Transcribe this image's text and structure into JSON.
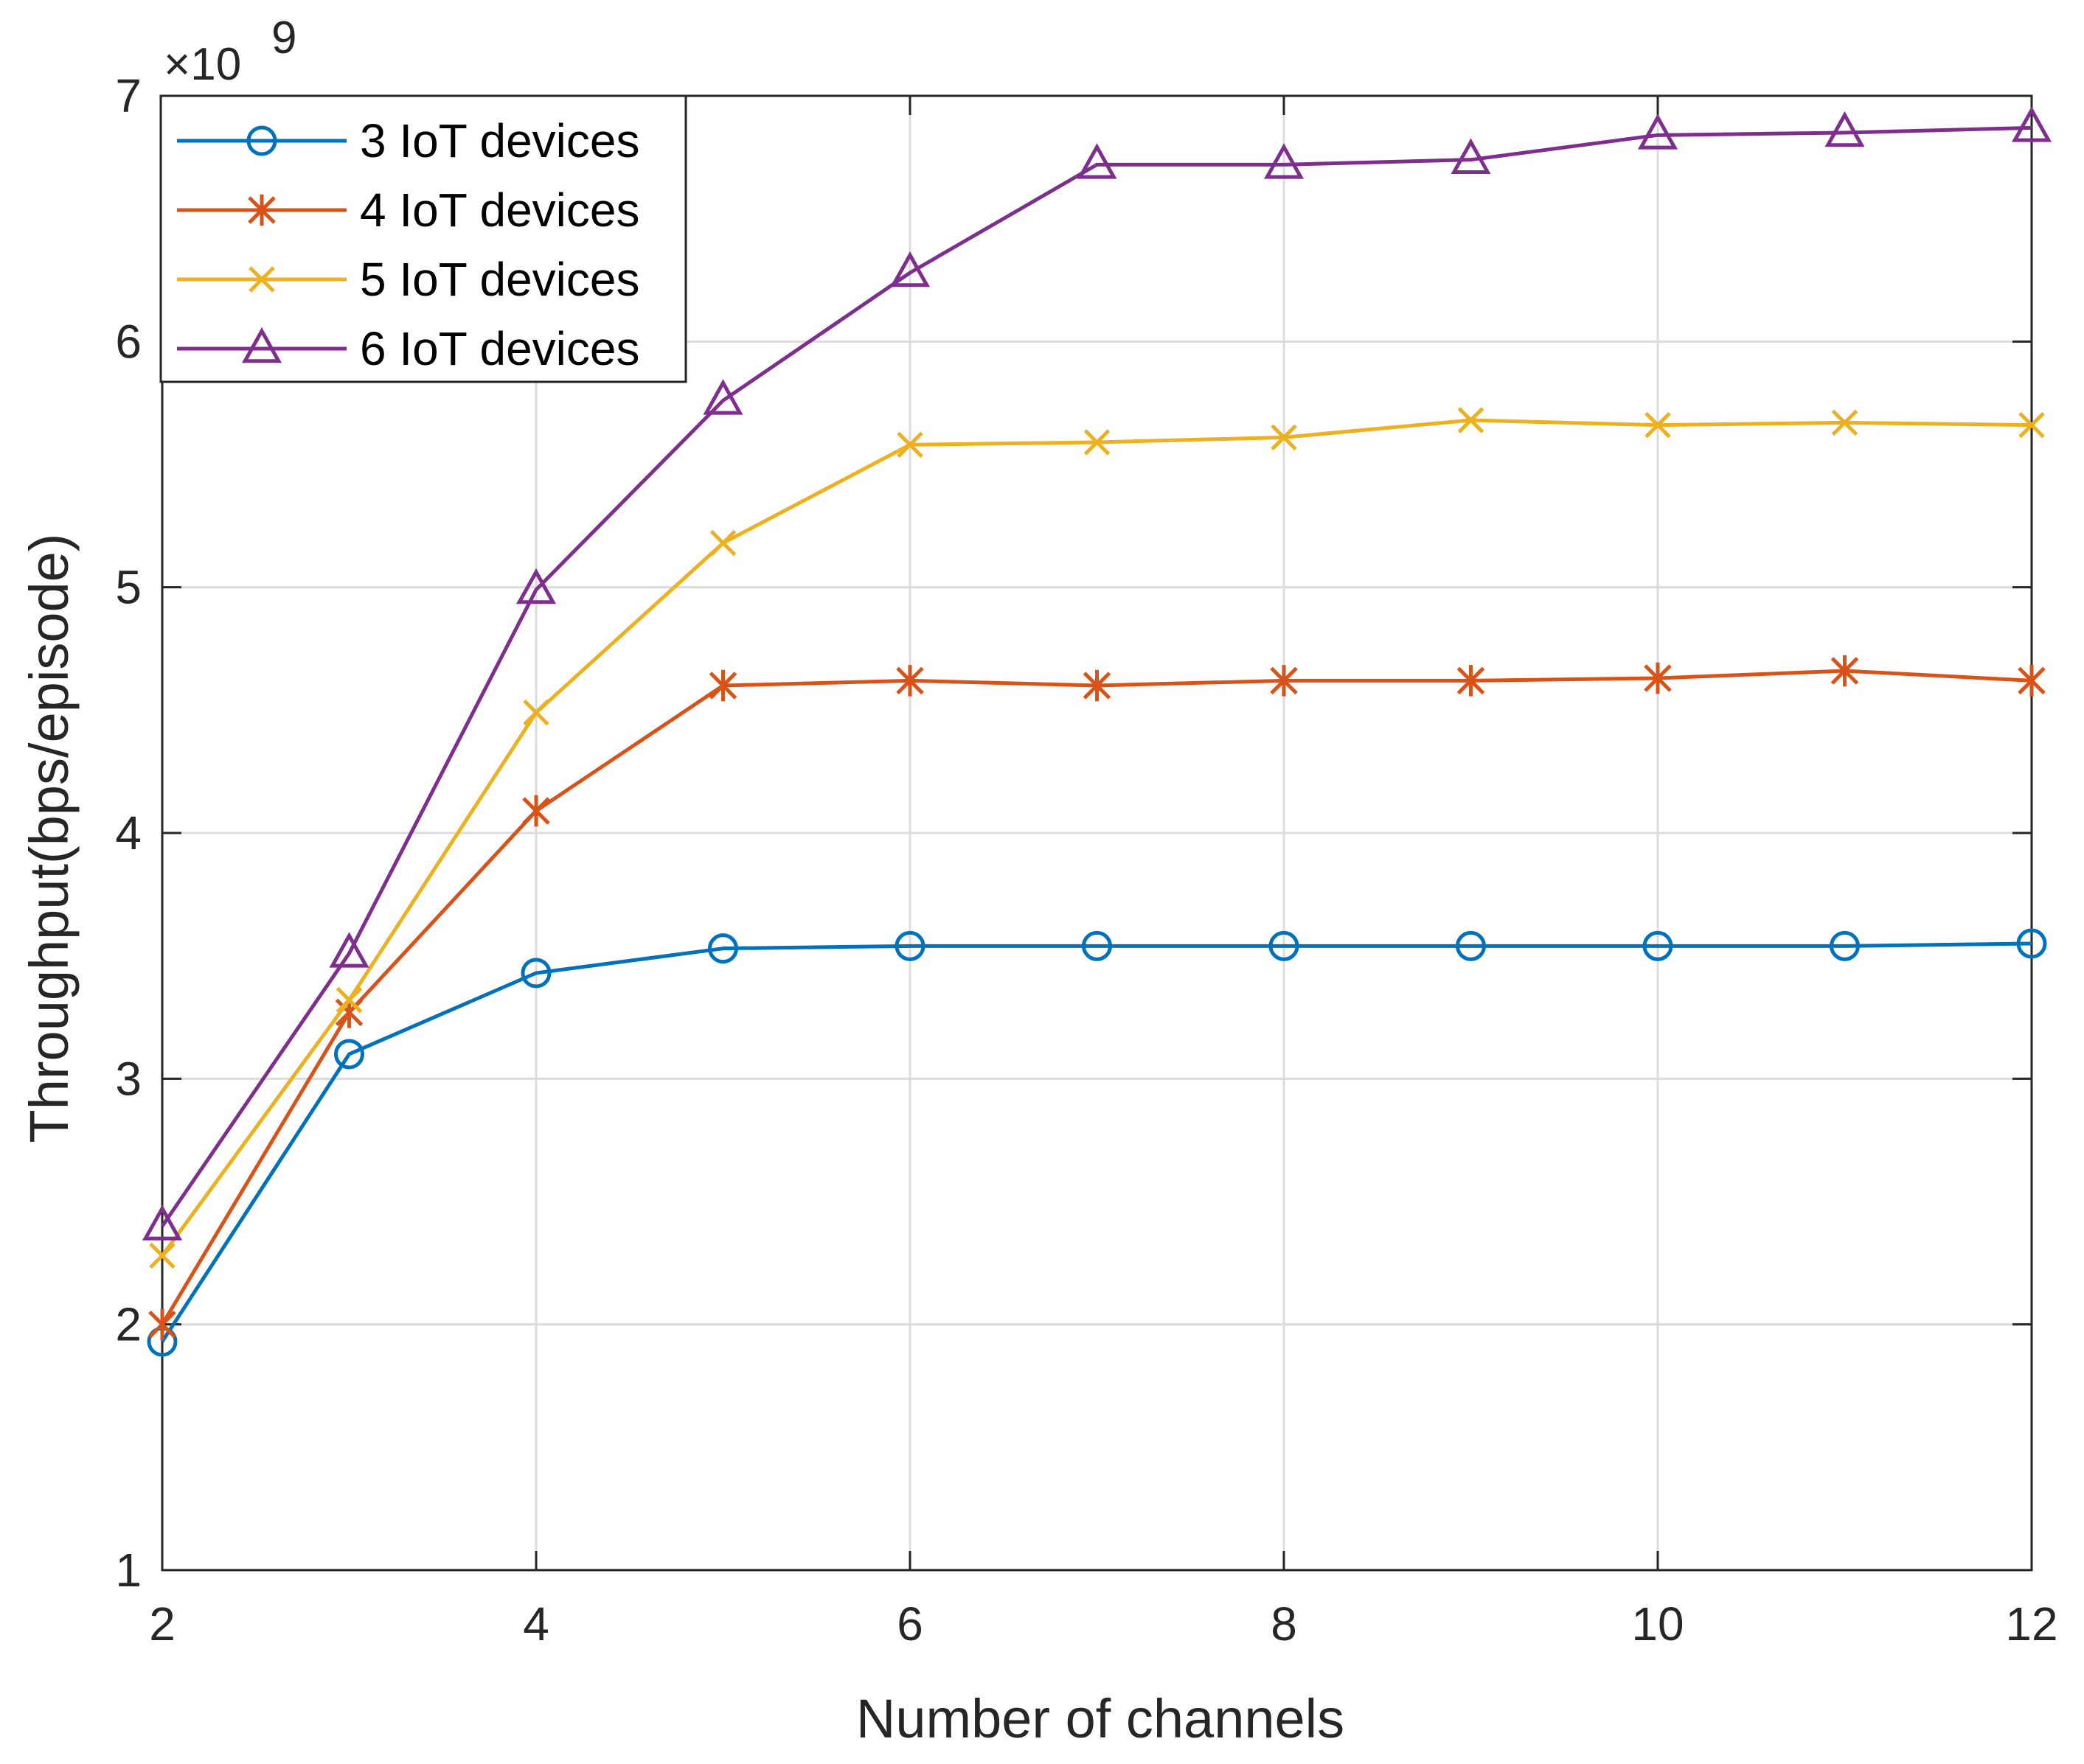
{
  "chart_data": {
    "type": "line",
    "title": "",
    "xlabel": "Number of channels",
    "ylabel": "Throughput(bps/episode)",
    "y_exponent_label": "×10",
    "y_exponent_power": "9",
    "x": [
      2,
      3,
      4,
      5,
      6,
      7,
      8,
      9,
      10,
      11,
      12
    ],
    "xlim": [
      2,
      12
    ],
    "ylim": [
      1,
      7
    ],
    "xticks": [
      2,
      4,
      6,
      8,
      10,
      12
    ],
    "yticks": [
      1,
      2,
      3,
      4,
      5,
      6,
      7
    ],
    "xtick_labels": [
      "2",
      "4",
      "6",
      "8",
      "10",
      "12"
    ],
    "ytick_labels": [
      "1",
      "2",
      "3",
      "4",
      "5",
      "6",
      "7"
    ],
    "grid": true,
    "legend_position": "top-left",
    "series": [
      {
        "name": "3 IoT devices",
        "color": "#0072BD",
        "marker": "circle",
        "values": [
          1.93,
          3.1,
          3.43,
          3.53,
          3.54,
          3.54,
          3.54,
          3.54,
          3.54,
          3.54,
          3.55
        ]
      },
      {
        "name": "4 IoT devices",
        "color": "#D95319",
        "marker": "asterisk",
        "values": [
          2.0,
          3.27,
          4.09,
          4.6,
          4.62,
          4.6,
          4.62,
          4.62,
          4.63,
          4.66,
          4.62
        ]
      },
      {
        "name": "5 IoT devices",
        "color": "#EDB120",
        "marker": "x",
        "values": [
          2.28,
          3.32,
          4.49,
          5.18,
          5.58,
          5.59,
          5.61,
          5.68,
          5.66,
          5.67,
          5.66
        ]
      },
      {
        "name": "6 IoT devices",
        "color": "#7E2F8E",
        "marker": "triangle",
        "values": [
          2.4,
          3.51,
          4.99,
          5.76,
          6.28,
          6.72,
          6.72,
          6.74,
          6.84,
          6.85,
          6.87
        ]
      }
    ]
  }
}
